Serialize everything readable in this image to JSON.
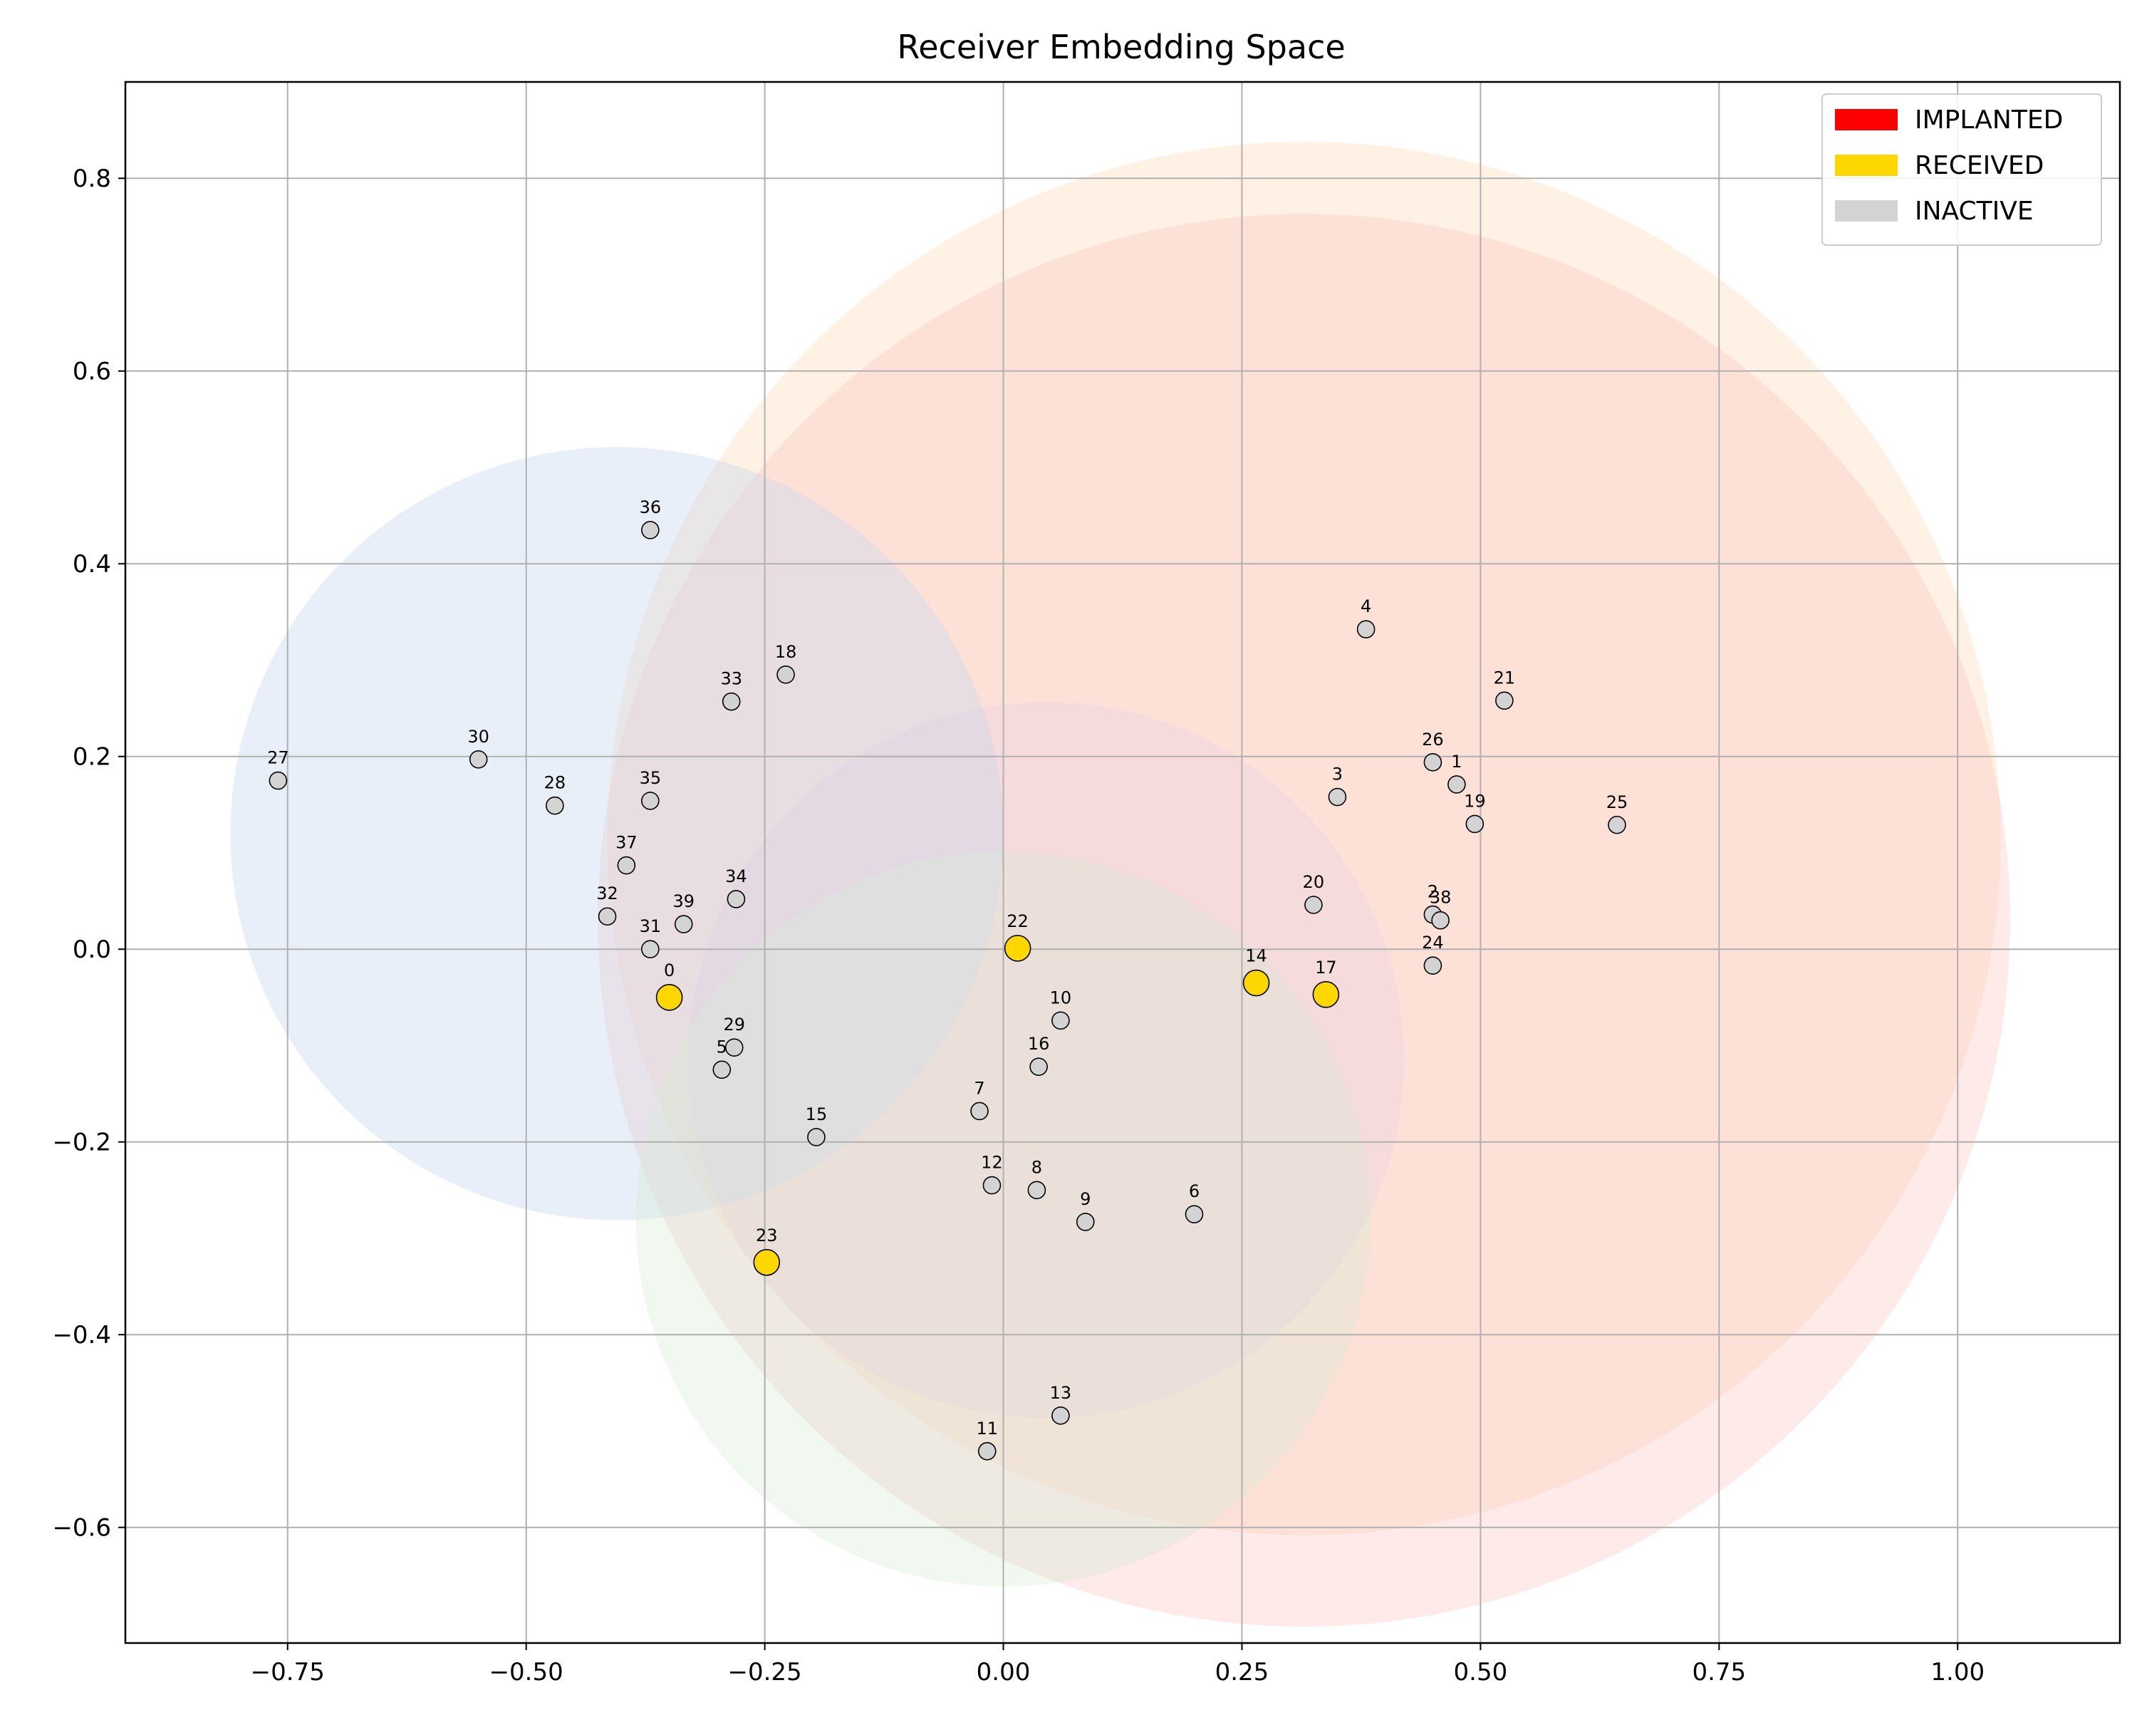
{
  "chart_data": {
    "type": "scatter",
    "title": "Receiver Embedding Space",
    "xlabel": "",
    "ylabel": "",
    "xlim": [
      -0.92,
      1.17
    ],
    "ylim": [
      -0.72,
      0.9
    ],
    "xticks": [
      -0.75,
      -0.5,
      -0.25,
      0.0,
      0.25,
      0.5,
      0.75,
      1.0
    ],
    "yticks": [
      -0.6,
      -0.4,
      -0.2,
      0.0,
      0.2,
      0.4,
      0.6,
      0.8
    ],
    "xtick_labels": [
      "−0.75",
      "−0.50",
      "−0.25",
      "0.00",
      "0.25",
      "0.50",
      "0.75",
      "1.00"
    ],
    "ytick_labels": [
      "−0.6",
      "−0.4",
      "−0.2",
      "0.0",
      "0.2",
      "0.4",
      "0.6",
      "0.8"
    ],
    "grid": true,
    "legend_position": "top-right",
    "legend": [
      {
        "label": "IMPLANTED",
        "color": "#ff0000"
      },
      {
        "label": "RECEIVED",
        "color": "#ffd700"
      },
      {
        "label": "INACTIVE",
        "color": "#d3d3d3"
      }
    ],
    "regions": [
      {
        "cx": 0.315,
        "cy": 0.115,
        "r": 0.73,
        "color": "#ffd8b0",
        "opacity": 0.35
      },
      {
        "cx": 0.315,
        "cy": 0.03,
        "r": 0.74,
        "color": "#f9c4c0",
        "opacity": 0.35
      },
      {
        "cx": 0.045,
        "cy": -0.115,
        "r": 0.375,
        "color": "#e9d0e6",
        "opacity": 0.35
      },
      {
        "cx": -0.405,
        "cy": 0.12,
        "r": 0.405,
        "color": "#c9d7ee",
        "opacity": 0.4
      },
      {
        "cx": 0.0,
        "cy": -0.28,
        "r": 0.385,
        "color": "#d3ecd3",
        "opacity": 0.35
      }
    ],
    "points": [
      {
        "id": "27",
        "x": -0.76,
        "y": 0.175,
        "status": "INACTIVE"
      },
      {
        "id": "30",
        "x": -0.55,
        "y": 0.197,
        "status": "INACTIVE"
      },
      {
        "id": "28",
        "x": -0.47,
        "y": 0.149,
        "status": "INACTIVE"
      },
      {
        "id": "36",
        "x": -0.37,
        "y": 0.435,
        "status": "INACTIVE"
      },
      {
        "id": "35",
        "x": -0.37,
        "y": 0.154,
        "status": "INACTIVE"
      },
      {
        "id": "37",
        "x": -0.395,
        "y": 0.087,
        "status": "INACTIVE"
      },
      {
        "id": "32",
        "x": -0.415,
        "y": 0.034,
        "status": "INACTIVE"
      },
      {
        "id": "31",
        "x": -0.37,
        "y": 0.0,
        "status": "INACTIVE"
      },
      {
        "id": "39",
        "x": -0.335,
        "y": 0.026,
        "status": "INACTIVE"
      },
      {
        "id": "34",
        "x": -0.28,
        "y": 0.052,
        "status": "INACTIVE"
      },
      {
        "id": "33",
        "x": -0.285,
        "y": 0.257,
        "status": "INACTIVE"
      },
      {
        "id": "18",
        "x": -0.228,
        "y": 0.285,
        "status": "INACTIVE"
      },
      {
        "id": "0",
        "x": -0.35,
        "y": -0.05,
        "status": "RECEIVED"
      },
      {
        "id": "29",
        "x": -0.282,
        "y": -0.102,
        "status": "INACTIVE"
      },
      {
        "id": "5",
        "x": -0.295,
        "y": -0.125,
        "status": "INACTIVE"
      },
      {
        "id": "15",
        "x": -0.196,
        "y": -0.195,
        "status": "INACTIVE"
      },
      {
        "id": "23",
        "x": -0.248,
        "y": -0.325,
        "status": "RECEIVED"
      },
      {
        "id": "22",
        "x": 0.015,
        "y": 0.001,
        "status": "RECEIVED"
      },
      {
        "id": "10",
        "x": 0.06,
        "y": -0.074,
        "status": "INACTIVE"
      },
      {
        "id": "16",
        "x": 0.037,
        "y": -0.122,
        "status": "INACTIVE"
      },
      {
        "id": "7",
        "x": -0.025,
        "y": -0.168,
        "status": "INACTIVE"
      },
      {
        "id": "12",
        "x": -0.012,
        "y": -0.245,
        "status": "INACTIVE"
      },
      {
        "id": "8",
        "x": 0.035,
        "y": -0.25,
        "status": "INACTIVE"
      },
      {
        "id": "9",
        "x": 0.086,
        "y": -0.283,
        "status": "INACTIVE"
      },
      {
        "id": "6",
        "x": 0.2,
        "y": -0.275,
        "status": "INACTIVE"
      },
      {
        "id": "13",
        "x": 0.06,
        "y": -0.484,
        "status": "INACTIVE"
      },
      {
        "id": "11",
        "x": -0.017,
        "y": -0.521,
        "status": "INACTIVE"
      },
      {
        "id": "14",
        "x": 0.265,
        "y": -0.035,
        "status": "RECEIVED"
      },
      {
        "id": "17",
        "x": 0.338,
        "y": -0.047,
        "status": "RECEIVED"
      },
      {
        "id": "20",
        "x": 0.325,
        "y": 0.046,
        "status": "INACTIVE"
      },
      {
        "id": "3",
        "x": 0.35,
        "y": 0.158,
        "status": "INACTIVE"
      },
      {
        "id": "4",
        "x": 0.38,
        "y": 0.332,
        "status": "INACTIVE"
      },
      {
        "id": "26",
        "x": 0.45,
        "y": 0.194,
        "status": "INACTIVE"
      },
      {
        "id": "1",
        "x": 0.475,
        "y": 0.171,
        "status": "INACTIVE"
      },
      {
        "id": "19",
        "x": 0.494,
        "y": 0.13,
        "status": "INACTIVE"
      },
      {
        "id": "21",
        "x": 0.525,
        "y": 0.258,
        "status": "INACTIVE"
      },
      {
        "id": "25",
        "x": 0.643,
        "y": 0.129,
        "status": "INACTIVE"
      },
      {
        "id": "2",
        "x": 0.45,
        "y": 0.036,
        "status": "INACTIVE"
      },
      {
        "id": "38",
        "x": 0.458,
        "y": 0.03,
        "status": "INACTIVE"
      },
      {
        "id": "24",
        "x": 0.45,
        "y": -0.017,
        "status": "INACTIVE"
      }
    ]
  }
}
